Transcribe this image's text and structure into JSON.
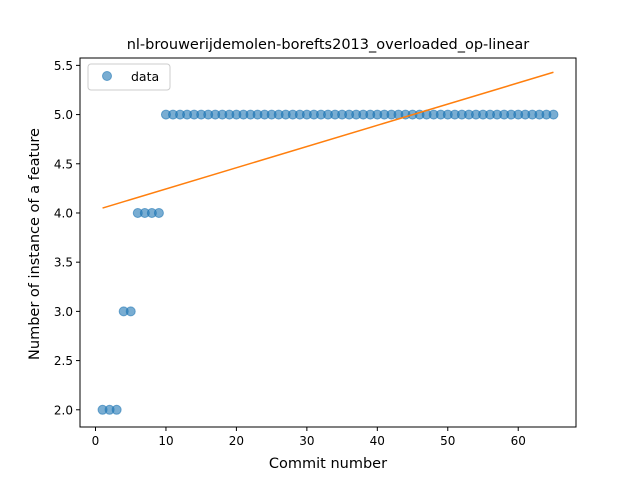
{
  "chart_data": {
    "type": "scatter",
    "title": "nl-brouwerijdemolen-borefts2013_overloaded_op-linear",
    "xlabel": "Commit number",
    "ylabel": "Number of instance of a feature",
    "xlim": [
      -2.2,
      68.2
    ],
    "ylim": [
      1.825,
      5.575
    ],
    "x_ticks": [
      0,
      10,
      20,
      30,
      40,
      50,
      60
    ],
    "y_ticks": [
      2.0,
      2.5,
      3.0,
      3.5,
      4.0,
      4.5,
      5.0,
      5.5
    ],
    "grid": false,
    "legend": {
      "placement": "top-left",
      "entries": [
        "data"
      ]
    },
    "series": [
      {
        "name": "data",
        "kind": "scatter",
        "color": "#1f77b4",
        "x": [
          1,
          2,
          3,
          4,
          5,
          6,
          7,
          8,
          9,
          10,
          11,
          12,
          13,
          14,
          15,
          16,
          17,
          18,
          19,
          20,
          21,
          22,
          23,
          24,
          25,
          26,
          27,
          28,
          29,
          30,
          31,
          32,
          33,
          34,
          35,
          36,
          37,
          38,
          39,
          40,
          41,
          42,
          43,
          44,
          45,
          46,
          47,
          48,
          49,
          50,
          51,
          52,
          53,
          54,
          55,
          56,
          57,
          58,
          59,
          60,
          61,
          62,
          63,
          64,
          65
        ],
        "y": [
          2,
          2,
          2,
          3,
          3,
          4,
          4,
          4,
          4,
          5,
          5,
          5,
          5,
          5,
          5,
          5,
          5,
          5,
          5,
          5,
          5,
          5,
          5,
          5,
          5,
          5,
          5,
          5,
          5,
          5,
          5,
          5,
          5,
          5,
          5,
          5,
          5,
          5,
          5,
          5,
          5,
          5,
          5,
          5,
          5,
          5,
          5,
          5,
          5,
          5,
          5,
          5,
          5,
          5,
          5,
          5,
          5,
          5,
          5,
          5,
          5,
          5,
          5,
          5,
          5
        ]
      },
      {
        "kind": "line",
        "color": "#ff7f0e",
        "x": [
          1,
          65
        ],
        "y": [
          4.05,
          5.43
        ]
      }
    ]
  }
}
